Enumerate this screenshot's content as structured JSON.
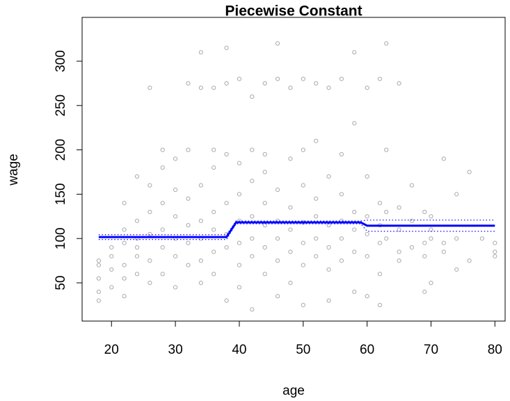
{
  "chart_data": {
    "type": "scatter",
    "title": "Piecewise Constant",
    "x_label": "age",
    "y_label": "wage",
    "xlim": [
      15.4,
      81.6
    ],
    "ylim": [
      6.9,
      349.4
    ],
    "xticks": [
      20,
      30,
      40,
      50,
      60,
      70,
      80
    ],
    "yticks": [
      50,
      100,
      150,
      200,
      250,
      300
    ],
    "point_color": "#aaaaaa",
    "points": [
      [
        18,
        70
      ],
      [
        18,
        55
      ],
      [
        18,
        40
      ],
      [
        18,
        75
      ],
      [
        18,
        30
      ],
      [
        20,
        65
      ],
      [
        20,
        80
      ],
      [
        20,
        45
      ],
      [
        20,
        90
      ],
      [
        22,
        95
      ],
      [
        22,
        70
      ],
      [
        22,
        110
      ],
      [
        22,
        55
      ],
      [
        22,
        140
      ],
      [
        22,
        35
      ],
      [
        24,
        100
      ],
      [
        24,
        80
      ],
      [
        24,
        120
      ],
      [
        24,
        60
      ],
      [
        24,
        170
      ],
      [
        24,
        90
      ],
      [
        26,
        105
      ],
      [
        26,
        130
      ],
      [
        26,
        75
      ],
      [
        26,
        270
      ],
      [
        26,
        50
      ],
      [
        26,
        160
      ],
      [
        28,
        110
      ],
      [
        28,
        90
      ],
      [
        28,
        140
      ],
      [
        28,
        60
      ],
      [
        28,
        180
      ],
      [
        28,
        200
      ],
      [
        30,
        100
      ],
      [
        30,
        125
      ],
      [
        30,
        80
      ],
      [
        30,
        155
      ],
      [
        30,
        45
      ],
      [
        30,
        190
      ],
      [
        32,
        115
      ],
      [
        32,
        95
      ],
      [
        32,
        145
      ],
      [
        32,
        70
      ],
      [
        32,
        200
      ],
      [
        32,
        275
      ],
      [
        34,
        120
      ],
      [
        34,
        100
      ],
      [
        34,
        160
      ],
      [
        34,
        75
      ],
      [
        34,
        310
      ],
      [
        34,
        50
      ],
      [
        34,
        270
      ],
      [
        36,
        110
      ],
      [
        36,
        130
      ],
      [
        36,
        180
      ],
      [
        36,
        85
      ],
      [
        36,
        270
      ],
      [
        36,
        200
      ],
      [
        36,
        60
      ],
      [
        38,
        105
      ],
      [
        38,
        140
      ],
      [
        38,
        90
      ],
      [
        38,
        195
      ],
      [
        38,
        275
      ],
      [
        38,
        315
      ],
      [
        38,
        30
      ],
      [
        40,
        120
      ],
      [
        40,
        95
      ],
      [
        40,
        150
      ],
      [
        40,
        70
      ],
      [
        40,
        185
      ],
      [
        40,
        280
      ],
      [
        40,
        45
      ],
      [
        42,
        125
      ],
      [
        42,
        100
      ],
      [
        42,
        165
      ],
      [
        42,
        80
      ],
      [
        42,
        200
      ],
      [
        42,
        260
      ],
      [
        42,
        20
      ],
      [
        44,
        115
      ],
      [
        44,
        140
      ],
      [
        44,
        90
      ],
      [
        44,
        175
      ],
      [
        44,
        60
      ],
      [
        44,
        275
      ],
      [
        44,
        195
      ],
      [
        46,
        120
      ],
      [
        46,
        100
      ],
      [
        46,
        155
      ],
      [
        46,
        75
      ],
      [
        46,
        320
      ],
      [
        46,
        280
      ],
      [
        46,
        35
      ],
      [
        48,
        110
      ],
      [
        48,
        135
      ],
      [
        48,
        85
      ],
      [
        48,
        190
      ],
      [
        48,
        270
      ],
      [
        48,
        50
      ],
      [
        50,
        118
      ],
      [
        50,
        95
      ],
      [
        50,
        160
      ],
      [
        50,
        70
      ],
      [
        50,
        280
      ],
      [
        50,
        200
      ],
      [
        50,
        25
      ],
      [
        52,
        125
      ],
      [
        52,
        100
      ],
      [
        52,
        145
      ],
      [
        52,
        80
      ],
      [
        52,
        210
      ],
      [
        52,
        275
      ],
      [
        54,
        115
      ],
      [
        54,
        90
      ],
      [
        54,
        170
      ],
      [
        54,
        65
      ],
      [
        54,
        270
      ],
      [
        54,
        30
      ],
      [
        56,
        120
      ],
      [
        56,
        100
      ],
      [
        56,
        150
      ],
      [
        56,
        75
      ],
      [
        56,
        280
      ],
      [
        56,
        195
      ],
      [
        58,
        110
      ],
      [
        58,
        130
      ],
      [
        58,
        85
      ],
      [
        58,
        230
      ],
      [
        58,
        310
      ],
      [
        58,
        40
      ],
      [
        60,
        105
      ],
      [
        60,
        125
      ],
      [
        60,
        80
      ],
      [
        60,
        170
      ],
      [
        60,
        270
      ],
      [
        60,
        35
      ],
      [
        62,
        115
      ],
      [
        62,
        95
      ],
      [
        62,
        140
      ],
      [
        62,
        60
      ],
      [
        62,
        280
      ],
      [
        62,
        25
      ],
      [
        63,
        100
      ],
      [
        63,
        130
      ],
      [
        63,
        320
      ],
      [
        63,
        200
      ],
      [
        65,
        110
      ],
      [
        65,
        85
      ],
      [
        65,
        135
      ],
      [
        65,
        75
      ],
      [
        65,
        275
      ],
      [
        67,
        120
      ],
      [
        67,
        90
      ],
      [
        67,
        160
      ],
      [
        69,
        95
      ],
      [
        69,
        80
      ],
      [
        69,
        130
      ],
      [
        69,
        40
      ],
      [
        70,
        110
      ],
      [
        70,
        100
      ],
      [
        70,
        50
      ],
      [
        70,
        125
      ],
      [
        72,
        95
      ],
      [
        72,
        85
      ],
      [
        72,
        190
      ],
      [
        74,
        100
      ],
      [
        74,
        65
      ],
      [
        74,
        150
      ],
      [
        76,
        75
      ],
      [
        76,
        175
      ],
      [
        78,
        100
      ],
      [
        80,
        95
      ],
      [
        80,
        85
      ],
      [
        80,
        80
      ]
    ],
    "fit": {
      "color": "#0000ff",
      "x": [
        18,
        38,
        39.5,
        59,
        60,
        80
      ],
      "values": [
        101.6,
        101.6,
        118.2,
        118.2,
        114.5,
        114.5
      ],
      "upper": [
        104.3,
        104.3,
        119.8,
        119.8,
        120.8,
        120.8
      ],
      "lower": [
        98.9,
        98.9,
        116.6,
        116.6,
        108.2,
        108.2
      ]
    }
  }
}
